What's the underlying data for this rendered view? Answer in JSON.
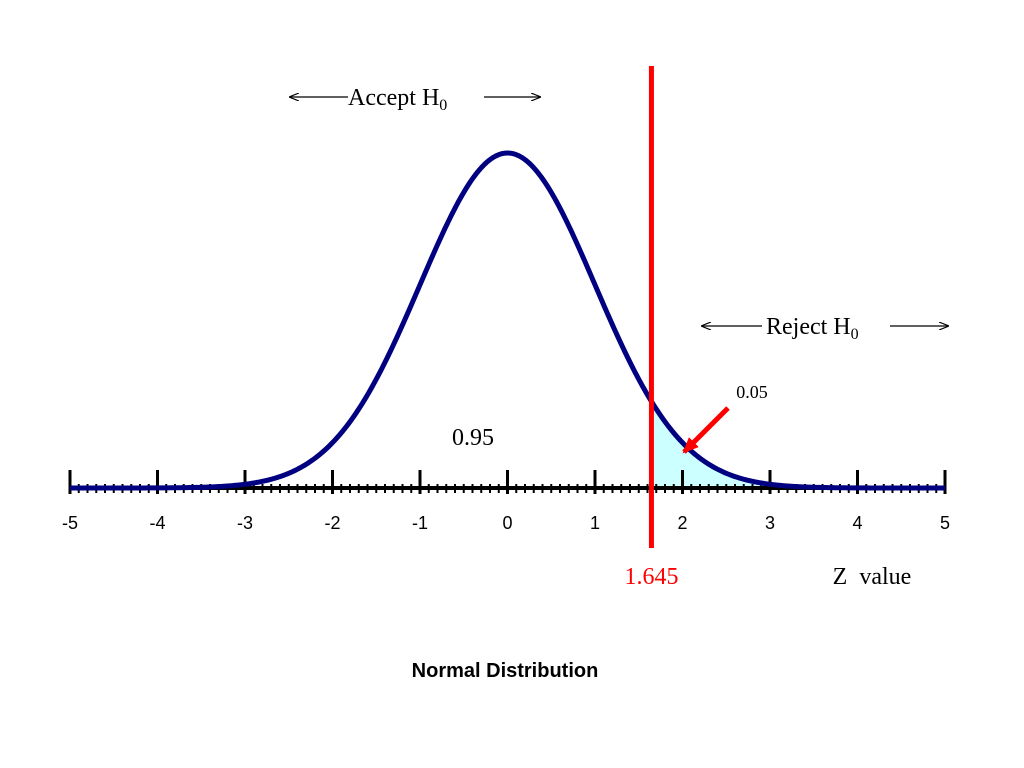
{
  "chart_data": {
    "type": "line",
    "title": "Normal Distribution",
    "xlabel": "Z  value",
    "ylabel": "",
    "xlim": [
      -5,
      5
    ],
    "ylim": [
      0,
      0.4
    ],
    "x_ticks": [
      -5,
      -4,
      -3,
      -2,
      -1,
      0,
      1,
      2,
      3,
      4,
      5
    ],
    "x_minor_step": 0.1,
    "curve": {
      "distribution": "standard normal",
      "mean": 0,
      "sd": 1
    },
    "critical_value": 1.645,
    "critical_label": "1.645",
    "acceptance_area": {
      "label": "0.95",
      "value": 0.95
    },
    "rejection_area": {
      "label": "0.05",
      "value": 0.05,
      "from": 1.645,
      "to": 5
    },
    "annotations": {
      "accept_text": "Accept H",
      "reject_text": "Reject H",
      "subscript": "0"
    },
    "grid": false,
    "legend": "none"
  },
  "colors": {
    "curve": "#000080",
    "critical_line": "#ff0000",
    "shaded_area": "#ccffff",
    "axis": "#000000",
    "text": "#000000",
    "critical_label": "#ff0000"
  }
}
